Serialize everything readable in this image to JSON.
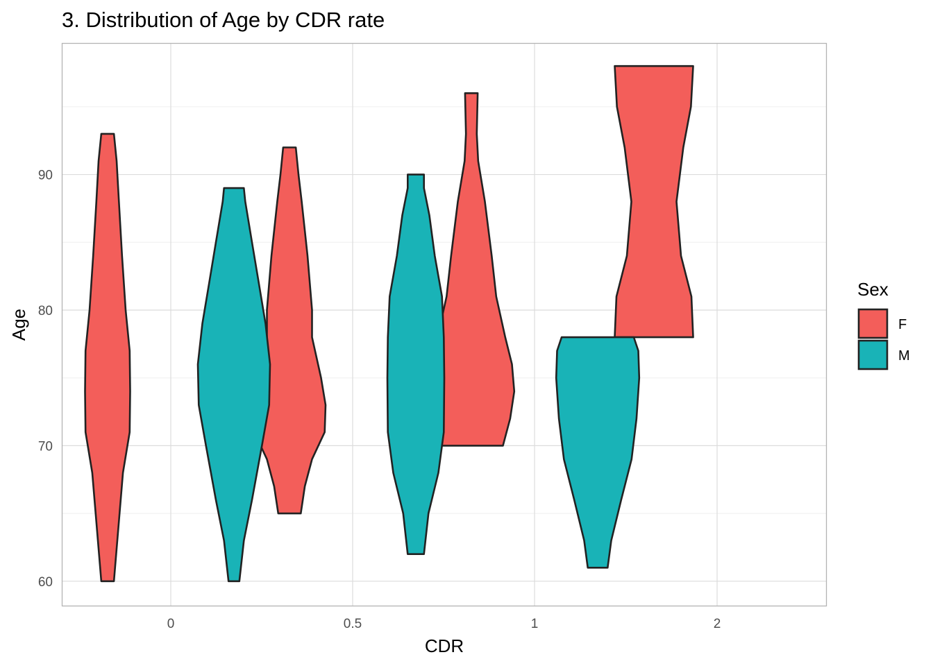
{
  "chart_data": {
    "type": "violin",
    "title": "3. Distribution of Age by CDR rate",
    "xlabel": "CDR",
    "ylabel": "Age",
    "categories": [
      "0",
      "0.5",
      "1",
      "2"
    ],
    "y_ticks": [
      60,
      70,
      80,
      90
    ],
    "ylim": [
      58.2,
      99.7
    ],
    "grid": true,
    "legend": {
      "title": "Sex",
      "placement": "right",
      "entries": [
        {
          "label": "F",
          "color": "#F35E5A"
        },
        {
          "label": "M",
          "color": "#19B3B7"
        }
      ]
    },
    "series": [
      {
        "name": "F",
        "color": "#F35E5A",
        "violins": [
          {
            "category": "0",
            "min": 60,
            "max": 93,
            "profile": [
              [
                60,
                0.14
              ],
              [
                64,
                0.24
              ],
              [
                68,
                0.34
              ],
              [
                71,
                0.49
              ],
              [
                74,
                0.5
              ],
              [
                77,
                0.49
              ],
              [
                80,
                0.4
              ],
              [
                84,
                0.32
              ],
              [
                88,
                0.25
              ],
              [
                91,
                0.2
              ],
              [
                93,
                0.14
              ]
            ]
          },
          {
            "category": "0.5",
            "min": 65,
            "max": 92,
            "profile": [
              [
                65,
                0.25
              ],
              [
                67,
                0.34
              ],
              [
                69,
                0.5
              ],
              [
                71,
                0.78
              ],
              [
                73,
                0.8
              ],
              [
                75,
                0.7
              ],
              [
                78,
                0.5
              ],
              [
                80,
                0.5
              ],
              [
                84,
                0.4
              ],
              [
                88,
                0.27
              ],
              [
                90,
                0.2
              ],
              [
                92,
                0.14
              ]
            ]
          },
          {
            "category": "1",
            "min": 70,
            "max": 96,
            "profile": [
              [
                70,
                0.7
              ],
              [
                72,
                0.86
              ],
              [
                74,
                0.95
              ],
              [
                76,
                0.9
              ],
              [
                78,
                0.75
              ],
              [
                81,
                0.55
              ],
              [
                84,
                0.45
              ],
              [
                88,
                0.3
              ],
              [
                91,
                0.15
              ],
              [
                93,
                0.12
              ],
              [
                96,
                0.14
              ]
            ]
          },
          {
            "category": "2",
            "min": 78,
            "max": 98,
            "profile": [
              [
                78,
                0.87
              ],
              [
                81,
                0.83
              ],
              [
                84,
                0.6
              ],
              [
                88,
                0.5
              ],
              [
                92,
                0.65
              ],
              [
                95,
                0.82
              ],
              [
                98,
                0.87
              ]
            ]
          }
        ]
      },
      {
        "name": "M",
        "color": "#19B3B7",
        "violins": [
          {
            "category": "0",
            "min": 60,
            "max": 89,
            "profile": [
              [
                60,
                0.12
              ],
              [
                63,
                0.22
              ],
              [
                66,
                0.4
              ],
              [
                70,
                0.62
              ],
              [
                73,
                0.78
              ],
              [
                76,
                0.8
              ],
              [
                79,
                0.7
              ],
              [
                82,
                0.55
              ],
              [
                85,
                0.4
              ],
              [
                88,
                0.25
              ],
              [
                89,
                0.22
              ]
            ]
          },
          {
            "category": "0.5",
            "min": 62,
            "max": 90,
            "profile": [
              [
                62,
                0.18
              ],
              [
                65,
                0.28
              ],
              [
                68,
                0.5
              ],
              [
                71,
                0.62
              ],
              [
                75,
                0.63
              ],
              [
                78,
                0.62
              ],
              [
                81,
                0.58
              ],
              [
                84,
                0.42
              ],
              [
                87,
                0.3
              ],
              [
                89,
                0.18
              ],
              [
                90,
                0.18
              ]
            ]
          },
          {
            "category": "1",
            "min": 61,
            "max": 78,
            "profile": [
              [
                61,
                0.22
              ],
              [
                63,
                0.3
              ],
              [
                66,
                0.52
              ],
              [
                69,
                0.75
              ],
              [
                72,
                0.86
              ],
              [
                75,
                0.92
              ],
              [
                77,
                0.9
              ],
              [
                78,
                0.8
              ]
            ]
          }
        ]
      }
    ]
  }
}
